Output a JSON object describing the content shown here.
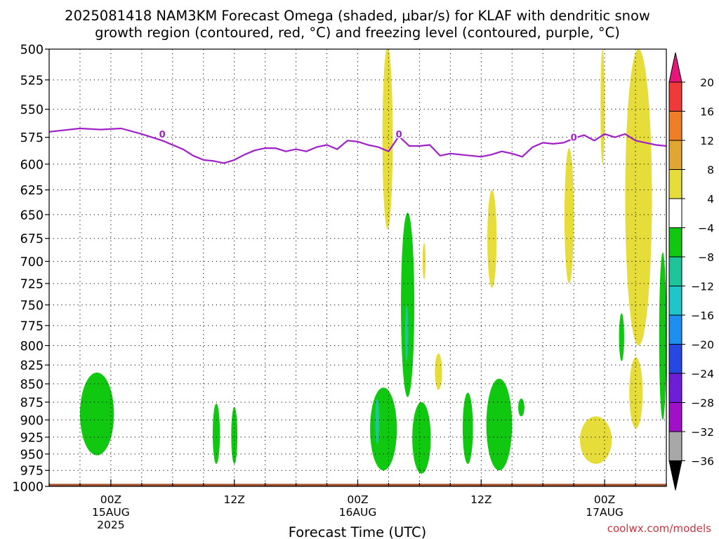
{
  "chart_data": {
    "type": "heatmap",
    "title": [
      "2025081418 NAM3KM Forecast Omega (shaded, μbar/s) for KLAF with dendritic snow",
      "growth region (contoured, red, °C) and freezing level (contoured, purple, °C)"
    ],
    "xlabel": "Forecast Time (UTC)",
    "ylabel": "",
    "x_unit": "hours from 2025-08-14 18Z",
    "xlim": [
      0,
      60
    ],
    "ylim": [
      1000,
      500
    ],
    "y_scale": "log",
    "yticks": [
      500,
      525,
      550,
      575,
      600,
      625,
      650,
      675,
      700,
      725,
      750,
      775,
      800,
      825,
      850,
      875,
      900,
      925,
      950,
      975,
      1000
    ],
    "ytick_labels": [
      "500",
      "525",
      "550",
      "575",
      "600",
      "625",
      "650",
      "675",
      "700",
      "725",
      "750",
      "775",
      "800",
      "825",
      "850",
      "875",
      "900",
      "925",
      "950",
      "975",
      "1000"
    ],
    "xticks": [
      {
        "x": 6,
        "label": [
          "00Z",
          "15AUG",
          "2025"
        ]
      },
      {
        "x": 18,
        "label": [
          "12Z"
        ]
      },
      {
        "x": 30,
        "label": [
          "00Z",
          "16AUG"
        ]
      },
      {
        "x": 42,
        "label": [
          "12Z"
        ]
      },
      {
        "x": 54,
        "label": [
          "00Z",
          "17AUG"
        ]
      }
    ],
    "grid": true,
    "colorbar": {
      "labels": [
        "20",
        "16",
        "12",
        "8",
        "4",
        "−4",
        "−8",
        "−12",
        "−16",
        "−20",
        "−24",
        "−28",
        "−32",
        "−36"
      ],
      "bins": [
        {
          "lo": 20,
          "hi": null,
          "color": "#e8157a"
        },
        {
          "lo": 16,
          "hi": 20,
          "color": "#f03a3a"
        },
        {
          "lo": 12,
          "hi": 16,
          "color": "#ef7f27"
        },
        {
          "lo": 8,
          "hi": 12,
          "color": "#e0a832"
        },
        {
          "lo": 4,
          "hi": 8,
          "color": "#e6dc3a"
        },
        {
          "lo": -4,
          "hi": 4,
          "color": "#ffffff"
        },
        {
          "lo": -8,
          "hi": -4,
          "color": "#10c810"
        },
        {
          "lo": -12,
          "hi": -8,
          "color": "#1fc59a"
        },
        {
          "lo": -16,
          "hi": -12,
          "color": "#1ec6c9"
        },
        {
          "lo": -20,
          "hi": -16,
          "color": "#1d8ff0"
        },
        {
          "lo": -24,
          "hi": -20,
          "color": "#2747e2"
        },
        {
          "lo": -28,
          "hi": -24,
          "color": "#6f1ed8"
        },
        {
          "lo": -32,
          "hi": -28,
          "color": "#9f10c8"
        },
        {
          "lo": -36,
          "hi": -32,
          "color": "#a8a8a8"
        },
        {
          "lo": null,
          "hi": -36,
          "color": "#000000"
        }
      ]
    },
    "series": [
      {
        "name": "0",
        "kind": "freezing-level-contour",
        "color": "#a020c8",
        "x": [
          0,
          3,
          5,
          7,
          9,
          11,
          13,
          14,
          15,
          16,
          17,
          18,
          19,
          20,
          21,
          22,
          23,
          24,
          25,
          26,
          27,
          28,
          29,
          30,
          31,
          32,
          33,
          34,
          35,
          36,
          37,
          38,
          39,
          40,
          41,
          42,
          43,
          44,
          45,
          46,
          47,
          48,
          49,
          50,
          51,
          52,
          53,
          54,
          55,
          56,
          57,
          58,
          59,
          60
        ],
        "y": [
          570,
          567,
          568,
          567,
          572,
          578,
          586,
          592,
          596,
          597,
          599,
          596,
          591,
          587,
          585,
          585,
          588,
          586,
          588,
          584,
          582,
          586,
          578,
          579,
          582,
          584,
          588,
          574,
          583,
          583,
          582,
          592,
          590,
          591,
          592,
          593,
          591,
          588,
          590,
          593,
          584,
          580,
          581,
          580,
          576,
          573,
          578,
          572,
          575,
          572,
          578,
          580,
          582,
          583
        ]
      }
    ],
    "contour_labels": [
      {
        "text": "0",
        "x": 11,
        "y": 572
      },
      {
        "text": "0",
        "x": 34,
        "y": 572
      },
      {
        "text": "0",
        "x": 51,
        "y": 575
      }
    ],
    "omega_regions": [
      {
        "color": "#e6dc3a",
        "x": [
          32.4,
          33.4
        ],
        "p": [
          498,
          665
        ]
      },
      {
        "color": "#e6dc3a",
        "x": [
          36.3,
          36.6
        ],
        "p": [
          680,
          720
        ]
      },
      {
        "color": "#e6dc3a",
        "x": [
          37.5,
          38.2
        ],
        "p": [
          810,
          858
        ]
      },
      {
        "color": "#e6dc3a",
        "x": [
          42.6,
          43.5
        ],
        "p": [
          625,
          730
        ]
      },
      {
        "color": "#e6dc3a",
        "x": [
          50.1,
          51.0
        ],
        "p": [
          585,
          725
        ]
      },
      {
        "color": "#e6dc3a",
        "x": [
          53.6,
          54.0
        ],
        "p": [
          500,
          600
        ]
      },
      {
        "color": "#e6dc3a",
        "x": [
          51.6,
          54.7
        ],
        "p": [
          895,
          965
        ]
      },
      {
        "color": "#e6dc3a",
        "x": [
          56.0,
          58.6
        ],
        "p": [
          500,
          800
        ]
      },
      {
        "color": "#e6dc3a",
        "x": [
          56.4,
          57.7
        ],
        "p": [
          815,
          912
        ]
      },
      {
        "color": "#10c810",
        "x": [
          3.0,
          6.3
        ],
        "p": [
          835,
          952
        ]
      },
      {
        "color": "#10c810",
        "x": [
          15.9,
          16.6
        ],
        "p": [
          877,
          965
        ]
      },
      {
        "color": "#10c810",
        "x": [
          17.7,
          18.3
        ],
        "p": [
          882,
          965
        ]
      },
      {
        "color": "#10c810",
        "x": [
          31.2,
          33.8
        ],
        "p": [
          855,
          975
        ]
      },
      {
        "color": "#10c810",
        "x": [
          34.2,
          35.5
        ],
        "p": [
          648,
          868
        ]
      },
      {
        "color": "#10c810",
        "x": [
          35.3,
          37.1
        ],
        "p": [
          875,
          980
        ]
      },
      {
        "color": "#10c810",
        "x": [
          40.2,
          41.2
        ],
        "p": [
          862,
          965
        ]
      },
      {
        "color": "#10c810",
        "x": [
          42.5,
          45.0
        ],
        "p": [
          843,
          975
        ]
      },
      {
        "color": "#10c810",
        "x": [
          45.6,
          46.2
        ],
        "p": [
          870,
          895
        ]
      },
      {
        "color": "#10c810",
        "x": [
          55.4,
          55.9
        ],
        "p": [
          760,
          820
        ]
      },
      {
        "color": "#10c810",
        "x": [
          59.3,
          60.0
        ],
        "p": [
          690,
          900
        ]
      },
      {
        "color": "#1fc59a",
        "x": [
          31.7,
          32.1
        ],
        "p": [
          870,
          935
        ]
      },
      {
        "color": "#1fc59a",
        "x": [
          34.6,
          34.9
        ],
        "p": [
          750,
          820
        ]
      }
    ],
    "surface_fill": {
      "color": "#a5522d",
      "p_top": 996
    }
  },
  "watermark": "coolwx.com/models"
}
